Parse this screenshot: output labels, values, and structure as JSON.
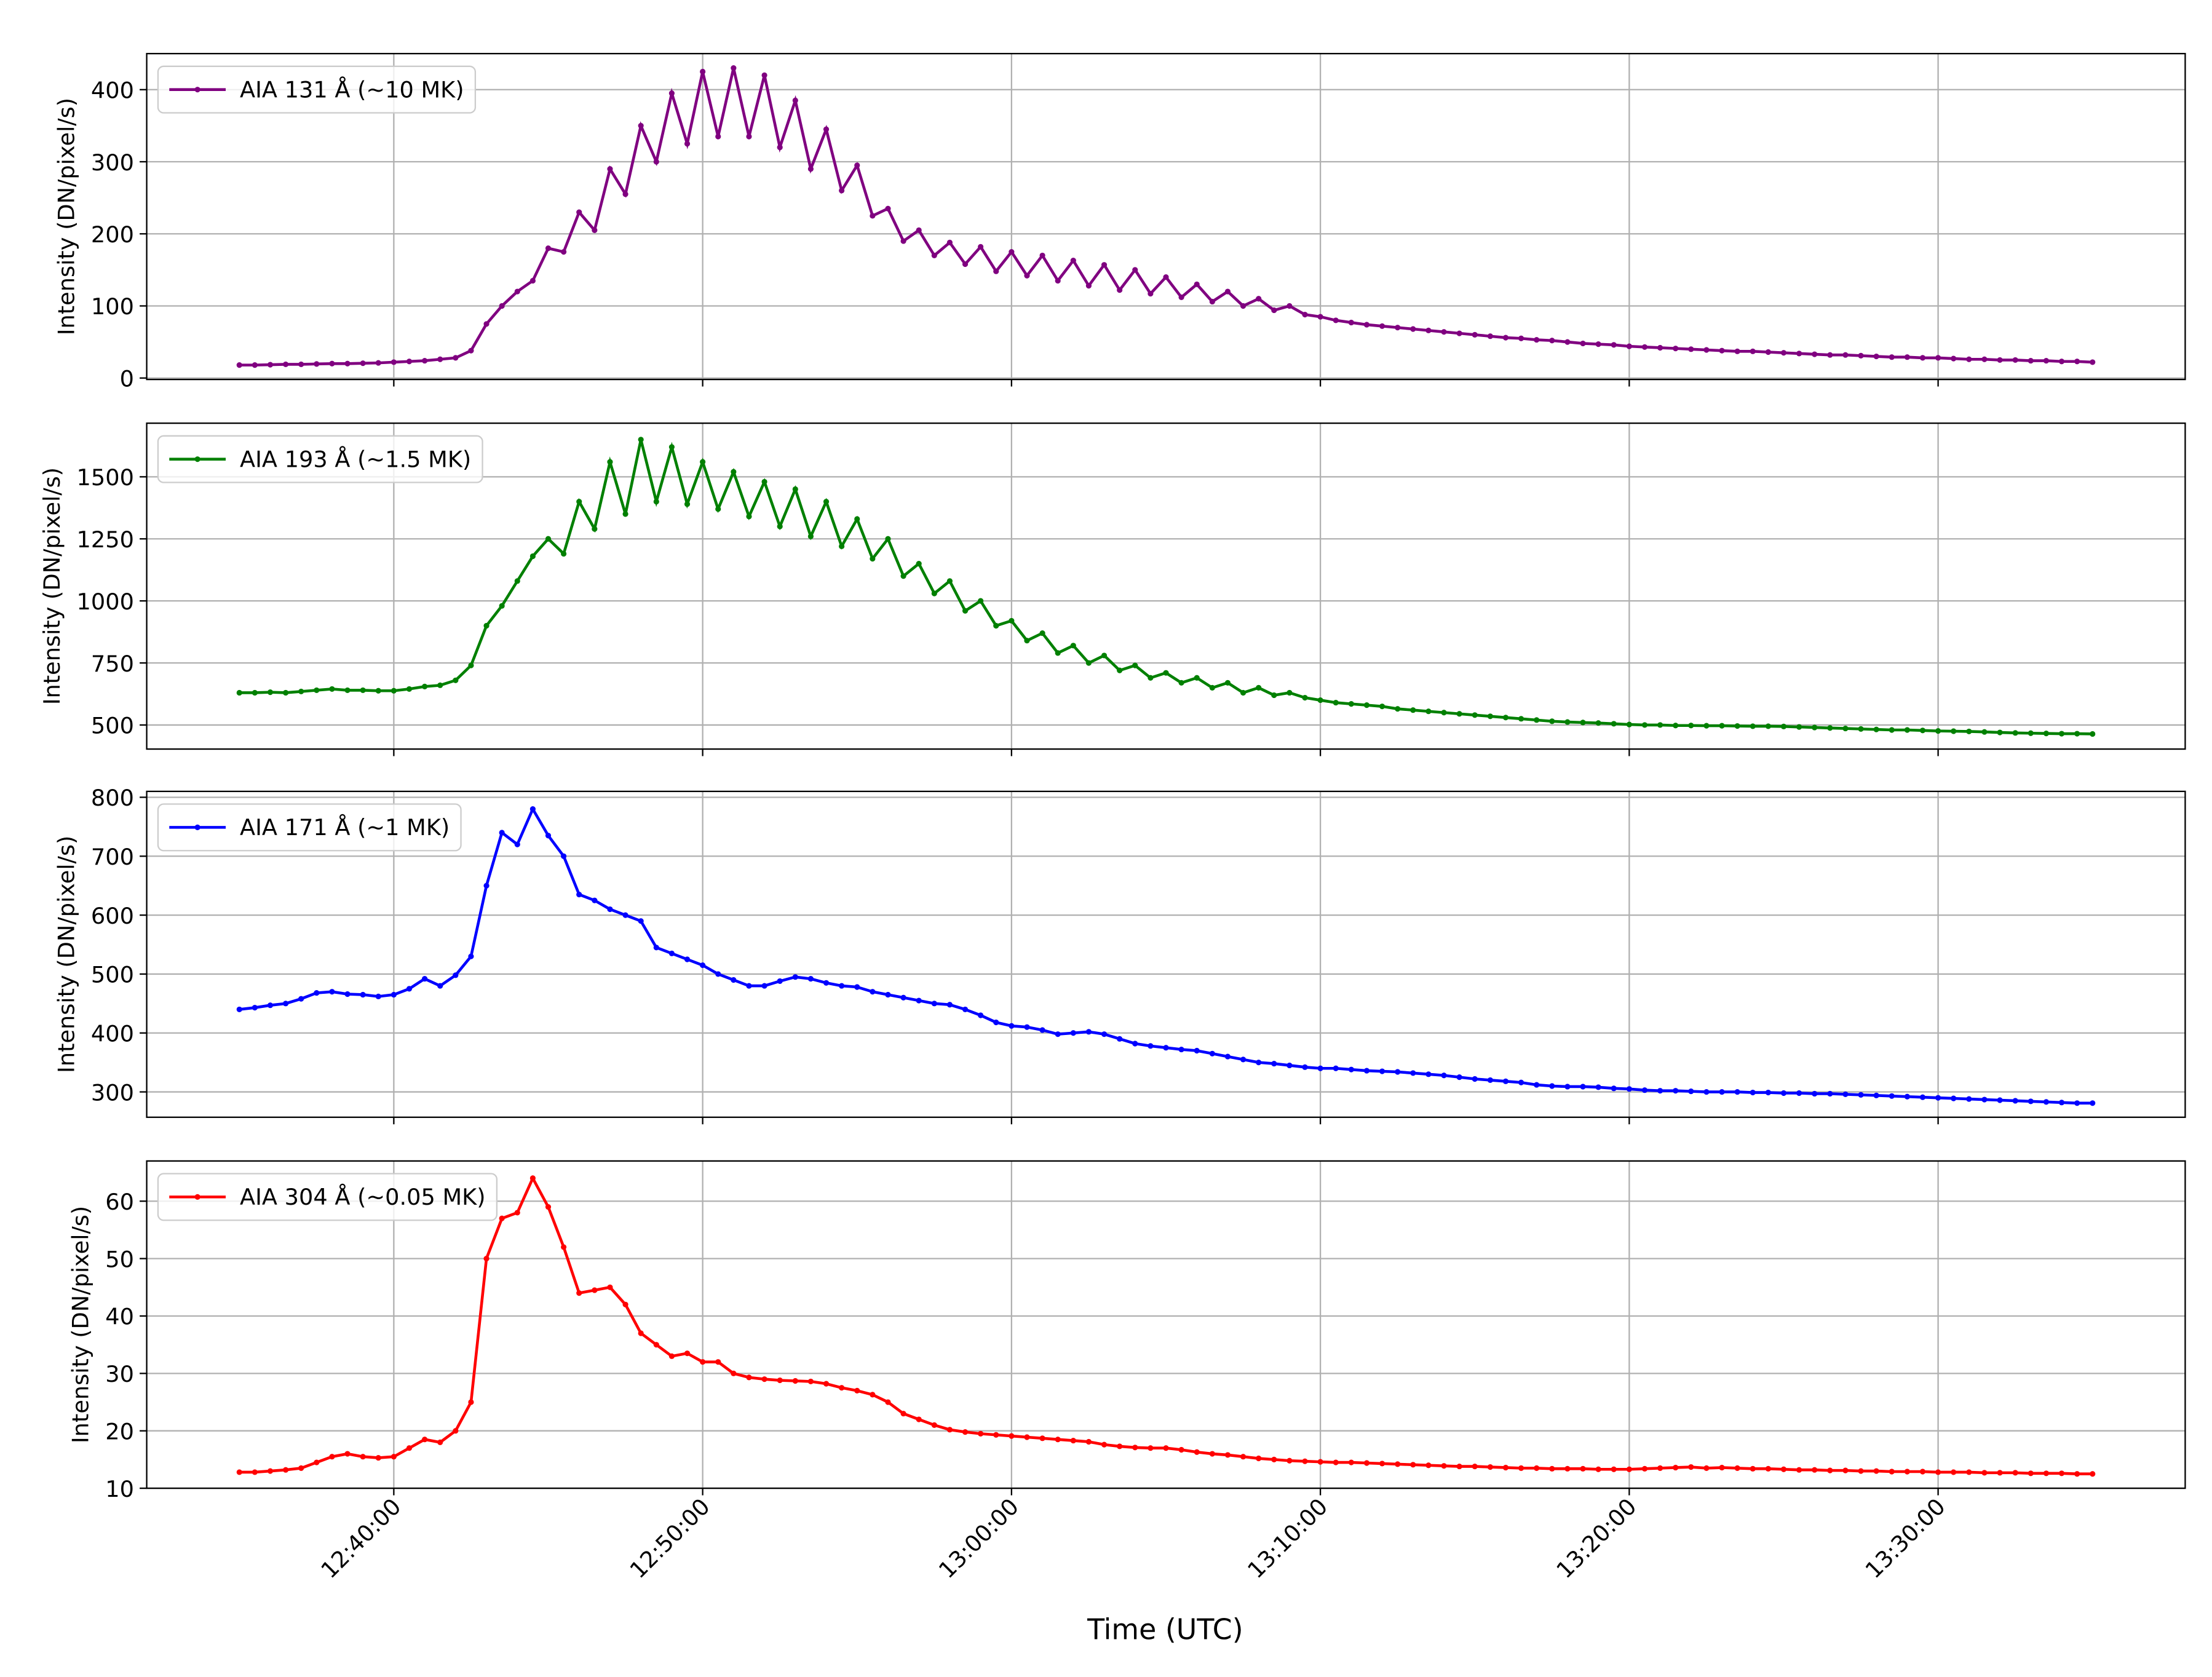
{
  "chart_data": {
    "type": "line",
    "grid": true,
    "legend": "upper left",
    "xlabel": "Time (UTC)",
    "xlim": [
      "12:32:00",
      "13:38:00"
    ],
    "xticks": [
      "12:40:00",
      "12:50:00",
      "13:00:00",
      "13:10:00",
      "13:20:00",
      "13:30:00"
    ],
    "x": [
      "12:35:00",
      "12:35:30",
      "12:36:00",
      "12:36:30",
      "12:37:00",
      "12:37:30",
      "12:38:00",
      "12:38:30",
      "12:39:00",
      "12:39:30",
      "12:40:00",
      "12:40:30",
      "12:41:00",
      "12:41:30",
      "12:42:00",
      "12:42:30",
      "12:43:00",
      "12:43:30",
      "12:44:00",
      "12:44:30",
      "12:45:00",
      "12:45:30",
      "12:46:00",
      "12:46:30",
      "12:47:00",
      "12:47:30",
      "12:48:00",
      "12:48:30",
      "12:49:00",
      "12:49:30",
      "12:50:00",
      "12:50:30",
      "12:51:00",
      "12:51:30",
      "12:52:00",
      "12:52:30",
      "12:53:00",
      "12:53:30",
      "12:54:00",
      "12:54:30",
      "12:55:00",
      "12:55:30",
      "12:56:00",
      "12:56:30",
      "12:57:00",
      "12:57:30",
      "12:58:00",
      "12:58:30",
      "12:59:00",
      "12:59:30",
      "13:00:00",
      "13:00:30",
      "13:01:00",
      "13:01:30",
      "13:02:00",
      "13:02:30",
      "13:03:00",
      "13:03:30",
      "13:04:00",
      "13:04:30",
      "13:05:00",
      "13:05:30",
      "13:06:00",
      "13:06:30",
      "13:07:00",
      "13:07:30",
      "13:08:00",
      "13:08:30",
      "13:09:00",
      "13:09:30",
      "13:10:00",
      "13:10:30",
      "13:11:00",
      "13:11:30",
      "13:12:00",
      "13:12:30",
      "13:13:00",
      "13:13:30",
      "13:14:00",
      "13:14:30",
      "13:15:00",
      "13:15:30",
      "13:16:00",
      "13:16:30",
      "13:17:00",
      "13:17:30",
      "13:18:00",
      "13:18:30",
      "13:19:00",
      "13:19:30",
      "13:20:00",
      "13:20:30",
      "13:21:00",
      "13:21:30",
      "13:22:00",
      "13:22:30",
      "13:23:00",
      "13:23:30",
      "13:24:00",
      "13:24:30",
      "13:25:00",
      "13:25:30",
      "13:26:00",
      "13:26:30",
      "13:27:00",
      "13:27:30",
      "13:28:00",
      "13:28:30",
      "13:29:00",
      "13:29:30",
      "13:30:00",
      "13:30:30",
      "13:31:00",
      "13:31:30",
      "13:32:00",
      "13:32:30",
      "13:33:00",
      "13:33:30",
      "13:34:00",
      "13:34:30",
      "13:35:00"
    ],
    "panels": [
      {
        "ylabel": "Intensity (DN/pixel/s)",
        "ylim": [
          -2,
          450
        ],
        "yticks": [
          0,
          100,
          200,
          300,
          400
        ],
        "series": [
          {
            "name": "AIA 131 Å (~10 MK)",
            "color": "#800080",
            "values": [
              18,
              18,
              18.5,
              19,
              19,
              19.5,
              20,
              20,
              20.5,
              21,
              22,
              23,
              24,
              26,
              28,
              38,
              75,
              100,
              120,
              135,
              180,
              175,
              230,
              205,
              290,
              255,
              350,
              300,
              395,
              325,
              425,
              335,
              430,
              335,
              420,
              320,
              385,
              290,
              345,
              260,
              295,
              225,
              235,
              190,
              205,
              170,
              188,
              158,
              182,
              148,
              175,
              142,
              170,
              135,
              163,
              128,
              157,
              122,
              150,
              117,
              140,
              112,
              130,
              106,
              120,
              100,
              110,
              94,
              100,
              88,
              85,
              80,
              77,
              74,
              72,
              70,
              68,
              66,
              64,
              62,
              60,
              58,
              56,
              55,
              53,
              52,
              50,
              48,
              47,
              46,
              44,
              43,
              42,
              41,
              40,
              39,
              38,
              37,
              37,
              36,
              35,
              34,
              33,
              32,
              32,
              31,
              30,
              29,
              29,
              28,
              28,
              27,
              26,
              26,
              25,
              25,
              24,
              24,
              23,
              23,
              22
            ]
          }
        ]
      },
      {
        "ylabel": "Intensity (DN/pixel/s)",
        "ylim": [
          403,
          1716
        ],
        "yticks": [
          500,
          750,
          1000,
          1250,
          1500
        ],
        "series": [
          {
            "name": "AIA 193 Å (~1.5 MK)",
            "color": "#008000",
            "values": [
              630,
              630,
              632,
              630,
              635,
              640,
              645,
              640,
              640,
              638,
              638,
              645,
              655,
              660,
              680,
              740,
              900,
              980,
              1080,
              1180,
              1250,
              1190,
              1400,
              1290,
              1560,
              1350,
              1650,
              1400,
              1620,
              1390,
              1560,
              1370,
              1520,
              1340,
              1480,
              1300,
              1450,
              1260,
              1400,
              1220,
              1330,
              1170,
              1250,
              1100,
              1150,
              1030,
              1080,
              960,
              1000,
              900,
              920,
              840,
              870,
              790,
              820,
              750,
              780,
              720,
              740,
              690,
              710,
              670,
              690,
              650,
              670,
              630,
              650,
              620,
              630,
              610,
              600,
              590,
              585,
              580,
              575,
              565,
              560,
              555,
              550,
              545,
              540,
              535,
              530,
              525,
              520,
              515,
              512,
              510,
              508,
              505,
              502,
              500,
              500,
              498,
              498,
              497,
              497,
              496,
              495,
              495,
              494,
              492,
              490,
              488,
              486,
              484,
              482,
              480,
              480,
              478,
              476,
              475,
              474,
              472,
              470,
              468,
              467,
              466,
              465,
              465,
              464
            ]
          }
        ]
      },
      {
        "ylabel": "Intensity (DN/pixel/s)",
        "ylim": [
          257,
          810
        ],
        "yticks": [
          300,
          400,
          500,
          600,
          700,
          800
        ],
        "series": [
          {
            "name": "AIA 171 Å (~1 MK)",
            "color": "#0000ff",
            "values": [
              440,
              443,
              447,
              450,
              458,
              468,
              470,
              466,
              465,
              462,
              465,
              475,
              492,
              480,
              498,
              530,
              650,
              740,
              720,
              780,
              735,
              700,
              635,
              625,
              610,
              600,
              590,
              545,
              535,
              525,
              515,
              500,
              490,
              480,
              480,
              488,
              495,
              492,
              485,
              480,
              478,
              470,
              465,
              460,
              455,
              450,
              448,
              440,
              430,
              418,
              412,
              410,
              405,
              398,
              400,
              402,
              398,
              390,
              382,
              378,
              375,
              372,
              370,
              365,
              360,
              355,
              350,
              348,
              345,
              342,
              340,
              340,
              338,
              336,
              335,
              334,
              332,
              330,
              328,
              325,
              322,
              320,
              318,
              316,
              312,
              310,
              309,
              309,
              308,
              306,
              305,
              303,
              302,
              302,
              301,
              300,
              300,
              300,
              299,
              299,
              298,
              298,
              297,
              297,
              296,
              295,
              294,
              293,
              292,
              291,
              290,
              289,
              288,
              287,
              286,
              285,
              284,
              283,
              282,
              281,
              281
            ]
          }
        ]
      },
      {
        "ylabel": "Intensity (DN/pixel/s)",
        "ylim": [
          10,
          67
        ],
        "yticks": [
          10,
          20,
          30,
          40,
          50,
          60
        ],
        "series": [
          {
            "name": "AIA 304 Å (~0.05 MK)",
            "color": "#ff0000",
            "values": [
              12.8,
              12.8,
              13,
              13.2,
              13.5,
              14.5,
              15.5,
              16,
              15.5,
              15.3,
              15.5,
              17,
              18.5,
              18,
              20,
              25,
              50,
              57,
              58,
              64,
              59,
              52,
              44,
              44.5,
              45,
              42,
              37,
              35,
              33,
              33.5,
              32,
              32,
              30,
              29.3,
              29,
              28.8,
              28.7,
              28.6,
              28.2,
              27.5,
              27,
              26.3,
              25,
              23,
              22,
              21,
              20.2,
              19.8,
              19.5,
              19.3,
              19.1,
              18.9,
              18.7,
              18.5,
              18.3,
              18.1,
              17.6,
              17.3,
              17.1,
              17,
              17,
              16.7,
              16.3,
              16,
              15.8,
              15.5,
              15.2,
              15,
              14.8,
              14.7,
              14.6,
              14.5,
              14.5,
              14.4,
              14.3,
              14.2,
              14.1,
              14,
              13.9,
              13.8,
              13.8,
              13.7,
              13.6,
              13.5,
              13.5,
              13.4,
              13.4,
              13.4,
              13.3,
              13.3,
              13.3,
              13.4,
              13.5,
              13.6,
              13.7,
              13.5,
              13.6,
              13.5,
              13.4,
              13.4,
              13.3,
              13.2,
              13.2,
              13.1,
              13.1,
              13.0,
              13.0,
              12.9,
              12.9,
              12.9,
              12.8,
              12.8,
              12.8,
              12.7,
              12.7,
              12.7,
              12.6,
              12.6,
              12.6,
              12.5,
              12.5
            ]
          }
        ]
      }
    ]
  }
}
